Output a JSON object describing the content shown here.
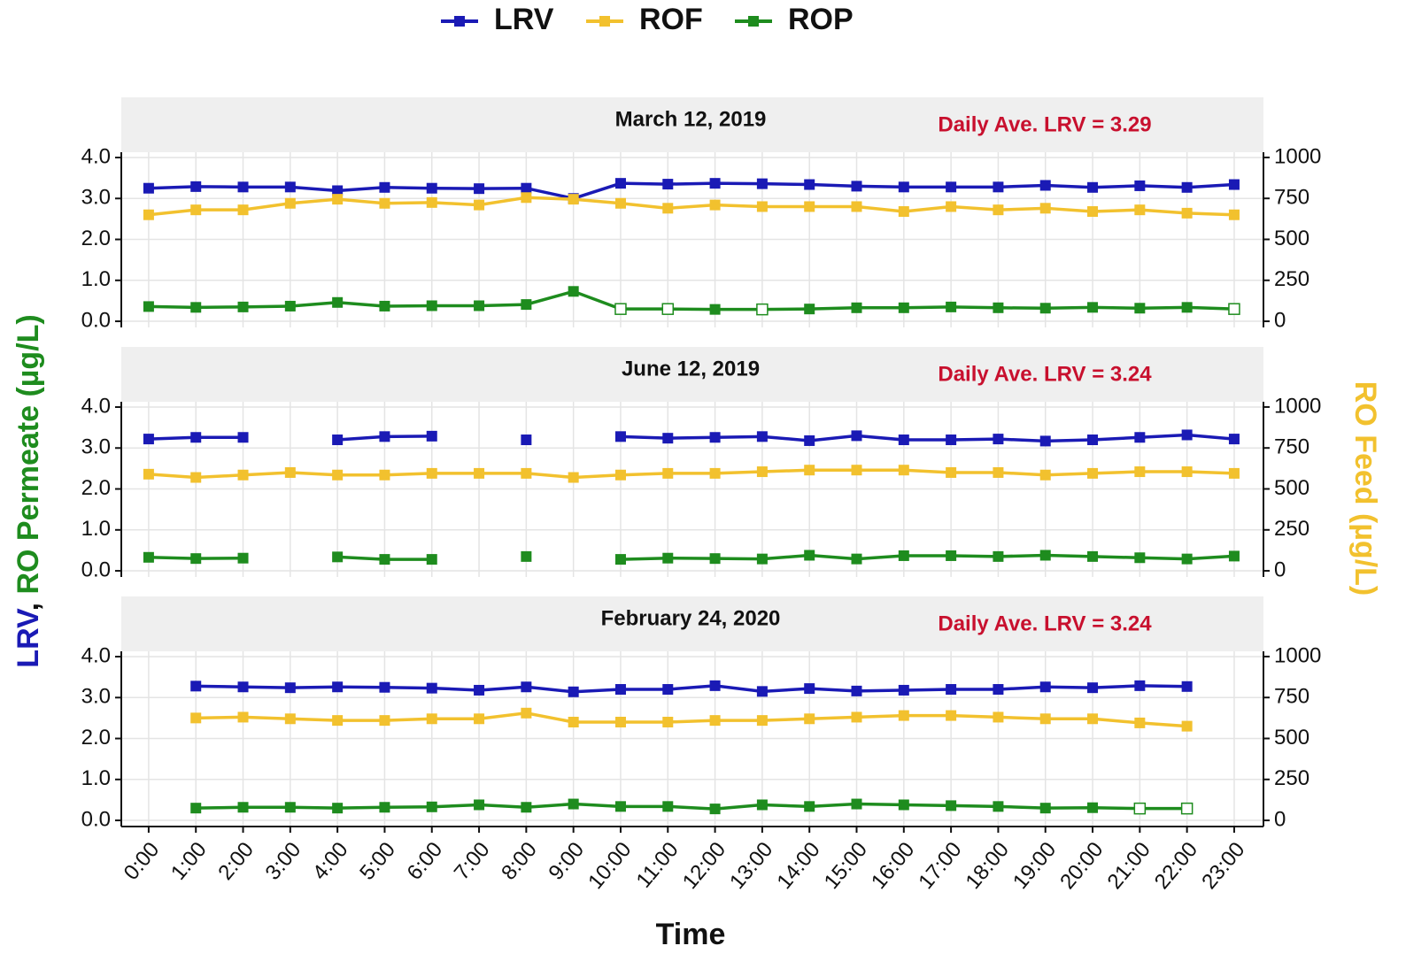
{
  "figure": {
    "ylabel_parts": [
      {
        "text": "LRV",
        "color": "#1a1ab5"
      },
      {
        "text": ", ",
        "color": "#111111"
      },
      {
        "text": "RO Permeate (µg/L)",
        "color": "#1e8c1e"
      }
    ],
    "y2label": "RO Feed (µg/L)",
    "y2label_color": "#f2c12e",
    "xlabel": "Time"
  },
  "chart_data": [
    {
      "type": "line",
      "title": "March 12, 2019",
      "annotation": "Daily Ave. LRV = 3.29",
      "annotation_color": "#c8102e",
      "categories": [
        "0:00",
        "1:00",
        "2:00",
        "3:00",
        "4:00",
        "5:00",
        "6:00",
        "7:00",
        "8:00",
        "9:00",
        "10:00",
        "11:00",
        "12:00",
        "13:00",
        "14:00",
        "15:00",
        "16:00",
        "17:00",
        "18:00",
        "19:00",
        "20:00",
        "21:00",
        "22:00",
        "23:00"
      ],
      "ylim": [
        -0.15,
        4.13
      ],
      "yticks": [
        {
          "value": 0,
          "label": "0.0"
        },
        {
          "value": 1,
          "label": "1.0"
        },
        {
          "value": 2,
          "label": "2.0"
        },
        {
          "value": 3,
          "label": "3.0"
        },
        {
          "value": 4,
          "label": "4.0"
        }
      ],
      "y2lim": [
        -37.5,
        1032
      ],
      "y2ticks": [
        0,
        250,
        500,
        750,
        1000
      ],
      "grid": true,
      "series": [
        {
          "name": "LRV",
          "color": "#1a1ab5",
          "values": [
            3.25,
            3.29,
            3.28,
            3.28,
            3.19,
            3.27,
            3.25,
            3.24,
            3.25,
            3.0,
            3.37,
            3.35,
            3.37,
            3.36,
            3.34,
            3.3,
            3.28,
            3.28,
            3.28,
            3.32,
            3.27,
            3.31,
            3.27,
            3.34
          ]
        },
        {
          "name": "ROF",
          "color": "#f2c12e",
          "axis": "y2",
          "values": [
            650,
            680,
            680,
            720,
            745,
            720,
            725,
            710,
            755,
            745,
            720,
            690,
            710,
            700,
            700,
            700,
            670,
            700,
            680,
            690,
            670,
            680,
            660,
            650
          ]
        },
        {
          "name": "ROP",
          "color": "#1e8c1e",
          "hollow_points": [
            10,
            11,
            13,
            23
          ],
          "values": [
            0.36,
            0.34,
            0.35,
            0.37,
            0.46,
            0.37,
            0.38,
            0.38,
            0.41,
            0.73,
            0.3,
            0.3,
            0.29,
            0.29,
            0.3,
            0.33,
            0.33,
            0.35,
            0.33,
            0.32,
            0.34,
            0.32,
            0.34,
            0.3
          ]
        }
      ]
    },
    {
      "type": "line",
      "title": "June 12, 2019",
      "annotation": "Daily Ave. LRV = 3.24",
      "annotation_color": "#c8102e",
      "categories": [
        "0:00",
        "1:00",
        "2:00",
        "3:00",
        "4:00",
        "5:00",
        "6:00",
        "7:00",
        "8:00",
        "9:00",
        "10:00",
        "11:00",
        "12:00",
        "13:00",
        "14:00",
        "15:00",
        "16:00",
        "17:00",
        "18:00",
        "19:00",
        "20:00",
        "21:00",
        "22:00",
        "23:00"
      ],
      "ylim": [
        -0.15,
        4.13
      ],
      "yticks": [
        {
          "value": 0,
          "label": "0.0"
        },
        {
          "value": 1,
          "label": "1.0"
        },
        {
          "value": 2,
          "label": "2.0"
        },
        {
          "value": 3,
          "label": "3.0"
        },
        {
          "value": 4,
          "label": "4.0"
        }
      ],
      "y2lim": [
        -37.5,
        1032
      ],
      "y2ticks": [
        0,
        250,
        500,
        750,
        1000
      ],
      "grid": true,
      "series": [
        {
          "name": "LRV",
          "color": "#1a1ab5",
          "values": [
            3.22,
            3.26,
            3.26,
            null,
            3.2,
            3.28,
            3.29,
            null,
            3.2,
            null,
            3.28,
            3.24,
            3.26,
            3.28,
            3.18,
            3.3,
            3.2,
            3.2,
            3.22,
            3.17,
            3.2,
            3.26,
            3.32,
            3.22
          ]
        },
        {
          "name": "ROF",
          "color": "#f2c12e",
          "axis": "y2",
          "values": [
            590,
            570,
            585,
            600,
            585,
            585,
            595,
            595,
            595,
            570,
            585,
            595,
            595,
            605,
            615,
            615,
            615,
            600,
            600,
            585,
            595,
            605,
            605,
            595
          ]
        },
        {
          "name": "ROP",
          "color": "#1e8c1e",
          "hollow_points": [],
          "values": [
            0.33,
            0.3,
            0.31,
            null,
            0.34,
            0.28,
            0.28,
            null,
            0.35,
            null,
            0.28,
            0.31,
            0.3,
            0.29,
            0.38,
            0.29,
            0.37,
            0.37,
            0.35,
            0.38,
            0.35,
            0.32,
            0.29,
            0.36
          ]
        }
      ]
    },
    {
      "type": "line",
      "title": "February 24, 2020",
      "annotation": "Daily Ave. LRV = 3.24",
      "annotation_color": "#c8102e",
      "categories": [
        "0:00",
        "1:00",
        "2:00",
        "3:00",
        "4:00",
        "5:00",
        "6:00",
        "7:00",
        "8:00",
        "9:00",
        "10:00",
        "11:00",
        "12:00",
        "13:00",
        "14:00",
        "15:00",
        "16:00",
        "17:00",
        "18:00",
        "19:00",
        "20:00",
        "21:00",
        "22:00",
        "23:00"
      ],
      "ylim": [
        -0.15,
        4.13
      ],
      "yticks": [
        {
          "value": 0,
          "label": "0.0"
        },
        {
          "value": 1,
          "label": "1.0"
        },
        {
          "value": 2,
          "label": "2.0"
        },
        {
          "value": 3,
          "label": "3.0"
        },
        {
          "value": 4,
          "label": "4.0"
        }
      ],
      "y2lim": [
        -37.5,
        1032
      ],
      "y2ticks": [
        0,
        250,
        500,
        750,
        1000
      ],
      "grid": true,
      "series": [
        {
          "name": "LRV",
          "color": "#1a1ab5",
          "values": [
            null,
            3.28,
            3.26,
            3.24,
            3.26,
            3.25,
            3.23,
            3.18,
            3.26,
            3.14,
            3.2,
            3.2,
            3.29,
            3.15,
            3.22,
            3.16,
            3.18,
            3.2,
            3.2,
            3.26,
            3.24,
            3.29,
            3.27,
            null
          ]
        },
        {
          "name": "ROF",
          "color": "#f2c12e",
          "axis": "y2",
          "values": [
            null,
            625,
            630,
            620,
            610,
            610,
            620,
            620,
            655,
            600,
            600,
            600,
            610,
            610,
            620,
            630,
            640,
            640,
            630,
            620,
            620,
            595,
            575,
            null
          ]
        },
        {
          "name": "ROP",
          "color": "#1e8c1e",
          "hollow_points": [
            21,
            22
          ],
          "values": [
            null,
            0.3,
            0.32,
            0.32,
            0.3,
            0.32,
            0.33,
            0.38,
            0.32,
            0.4,
            0.34,
            0.34,
            0.28,
            0.38,
            0.34,
            0.4,
            0.38,
            0.36,
            0.34,
            0.3,
            0.31,
            0.29,
            0.29,
            null
          ]
        }
      ]
    }
  ]
}
